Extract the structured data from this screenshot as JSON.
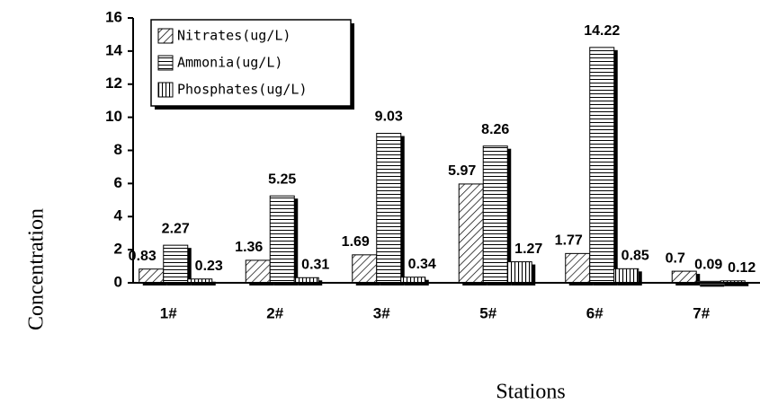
{
  "chart_data": {
    "type": "bar",
    "x_label": "Stations",
    "y_label": "Concentration",
    "categories": [
      "1#",
      "2#",
      "3#",
      "5#",
      "6#",
      "7#"
    ],
    "series": [
      {
        "name": "Nitrates(ug/L)",
        "pattern": "diagonal",
        "values": [
          0.83,
          1.36,
          1.69,
          5.97,
          1.77,
          0.7
        ]
      },
      {
        "name": "Ammonia(ug/L)",
        "pattern": "horizontal",
        "values": [
          2.27,
          5.25,
          9.03,
          8.26,
          14.22,
          0.09
        ]
      },
      {
        "name": "Phosphates(ug/L)",
        "pattern": "vertical",
        "values": [
          0.23,
          0.31,
          0.34,
          1.27,
          0.85,
          0.12
        ]
      }
    ],
    "ylim": [
      0,
      16
    ],
    "yticks": [
      0,
      2,
      4,
      6,
      8,
      10,
      12,
      14,
      16
    ],
    "legend": "upper left"
  }
}
